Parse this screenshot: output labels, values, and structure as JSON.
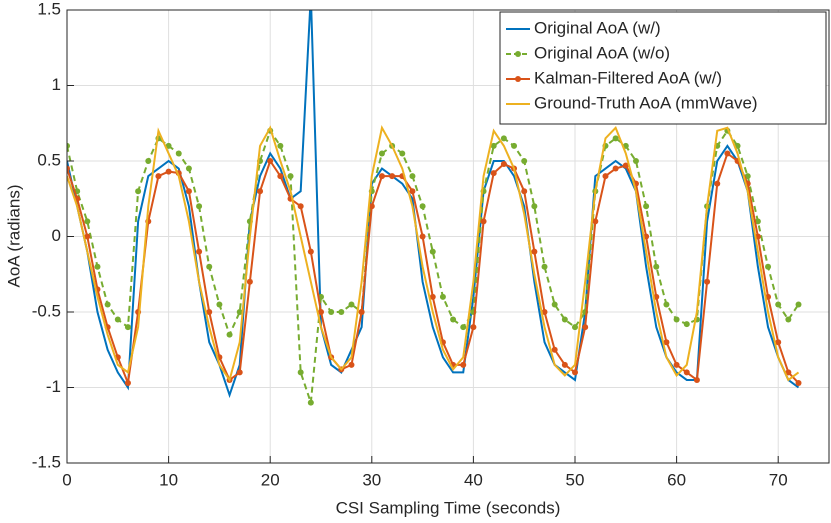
{
  "chart_data": {
    "type": "line",
    "xlabel": "CSI Sampling Time (seconds)",
    "ylabel": "AoA (radians)",
    "x": [
      0,
      1,
      2,
      3,
      4,
      5,
      6,
      7,
      8,
      9,
      10,
      11,
      12,
      13,
      14,
      15,
      16,
      17,
      18,
      19,
      20,
      21,
      22,
      23,
      24,
      25,
      26,
      27,
      28,
      29,
      30,
      31,
      32,
      33,
      34,
      35,
      36,
      37,
      38,
      39,
      40,
      41,
      42,
      43,
      44,
      45,
      46,
      47,
      48,
      49,
      50,
      51,
      52,
      53,
      54,
      55,
      56,
      57,
      58,
      59,
      60,
      61,
      62,
      63,
      64,
      65,
      66,
      67,
      68,
      69,
      70,
      71,
      72
    ],
    "xlim": [
      0,
      75
    ],
    "xticks": [
      0,
      10,
      20,
      30,
      40,
      50,
      60,
      70
    ],
    "ylim": [
      -1.5,
      1.5
    ],
    "yticks": [
      -1.5,
      -1,
      -0.5,
      0,
      0.5,
      1,
      1.5
    ],
    "grid": true,
    "legend": "upper right",
    "series": [
      {
        "name": "Original AoA (w/)",
        "color": "#0072bd",
        "line_style": "solid",
        "values": [
          0.5,
          0.2,
          -0.1,
          -0.5,
          -0.75,
          -0.9,
          -1.0,
          0.1,
          0.4,
          0.45,
          0.5,
          0.45,
          0.2,
          -0.3,
          -0.7,
          -0.85,
          -1.05,
          -0.85,
          0.1,
          0.4,
          0.55,
          0.45,
          0.25,
          0.3,
          1.6,
          -0.6,
          -0.85,
          -0.9,
          -0.75,
          -0.6,
          0.35,
          0.45,
          0.4,
          0.35,
          0.25,
          -0.3,
          -0.6,
          -0.8,
          -0.9,
          -0.9,
          -0.4,
          0.3,
          0.5,
          0.5,
          0.4,
          0.2,
          -0.3,
          -0.7,
          -0.85,
          -0.9,
          -0.95,
          -0.5,
          0.4,
          0.45,
          0.5,
          0.45,
          0.3,
          -0.2,
          -0.6,
          -0.8,
          -0.9,
          -0.95,
          -0.95,
          0.1,
          0.5,
          0.6,
          0.5,
          0.3,
          -0.2,
          -0.6,
          -0.8,
          -0.95,
          -1.0
        ]
      },
      {
        "name": "Original AoA (w/o)",
        "color": "#77ac30",
        "line_style": "dashed",
        "marker": "o",
        "values": [
          0.6,
          0.3,
          0.1,
          -0.2,
          -0.45,
          -0.55,
          -0.6,
          0.3,
          0.5,
          0.65,
          0.6,
          0.55,
          0.45,
          0.2,
          -0.2,
          -0.45,
          -0.65,
          -0.5,
          0.1,
          0.5,
          0.7,
          0.6,
          0.4,
          -0.9,
          -1.1,
          -0.4,
          -0.5,
          -0.5,
          -0.45,
          -0.5,
          0.3,
          0.55,
          0.6,
          0.55,
          0.4,
          0.2,
          -0.1,
          -0.4,
          -0.55,
          -0.6,
          -0.5,
          0.3,
          0.6,
          0.65,
          0.6,
          0.5,
          0.2,
          -0.2,
          -0.45,
          -0.55,
          -0.6,
          -0.5,
          0.3,
          0.6,
          0.65,
          0.6,
          0.5,
          0.2,
          -0.2,
          -0.45,
          -0.55,
          -0.58,
          -0.55,
          0.2,
          0.6,
          0.7,
          0.6,
          0.4,
          0.1,
          -0.2,
          -0.45,
          -0.55,
          -0.45
        ]
      },
      {
        "name": "Kalman-Filtered AoA (w/)",
        "color": "#d95319",
        "line_style": "solid",
        "marker": "o",
        "values": [
          0.45,
          0.25,
          0.0,
          -0.35,
          -0.6,
          -0.8,
          -0.97,
          -0.5,
          0.1,
          0.4,
          0.43,
          0.42,
          0.3,
          -0.1,
          -0.5,
          -0.8,
          -0.95,
          -0.9,
          -0.3,
          0.3,
          0.5,
          0.4,
          0.25,
          0.2,
          -0.1,
          -0.5,
          -0.8,
          -0.88,
          -0.85,
          -0.5,
          0.2,
          0.4,
          0.4,
          0.4,
          0.3,
          0.0,
          -0.4,
          -0.7,
          -0.85,
          -0.85,
          -0.6,
          0.1,
          0.42,
          0.48,
          0.45,
          0.3,
          -0.1,
          -0.5,
          -0.75,
          -0.85,
          -0.9,
          -0.6,
          0.1,
          0.4,
          0.45,
          0.47,
          0.35,
          0.0,
          -0.4,
          -0.7,
          -0.85,
          -0.9,
          -0.95,
          -0.3,
          0.35,
          0.55,
          0.5,
          0.35,
          0.0,
          -0.4,
          -0.7,
          -0.9,
          -0.97
        ]
      },
      {
        "name": "Ground-Truth AoA (mmWave)",
        "color": "#edb120",
        "line_style": "solid",
        "values": [
          0.4,
          0.2,
          -0.1,
          -0.4,
          -0.65,
          -0.85,
          -0.9,
          -0.6,
          0.2,
          0.7,
          0.55,
          0.4,
          0.1,
          -0.3,
          -0.6,
          -0.85,
          -0.95,
          -0.7,
          0.0,
          0.6,
          0.72,
          0.5,
          0.3,
          0.0,
          -0.3,
          -0.6,
          -0.8,
          -0.88,
          -0.8,
          -0.3,
          0.4,
          0.72,
          0.6,
          0.45,
          0.2,
          -0.2,
          -0.5,
          -0.75,
          -0.88,
          -0.8,
          -0.3,
          0.4,
          0.7,
          0.6,
          0.45,
          0.15,
          -0.25,
          -0.6,
          -0.85,
          -0.92,
          -0.85,
          -0.3,
          0.3,
          0.65,
          0.72,
          0.55,
          0.3,
          -0.1,
          -0.5,
          -0.8,
          -0.92,
          -0.85,
          -0.5,
          0.2,
          0.7,
          0.72,
          0.55,
          0.3,
          -0.1,
          -0.5,
          -0.8,
          -0.95,
          -0.9
        ]
      }
    ]
  }
}
